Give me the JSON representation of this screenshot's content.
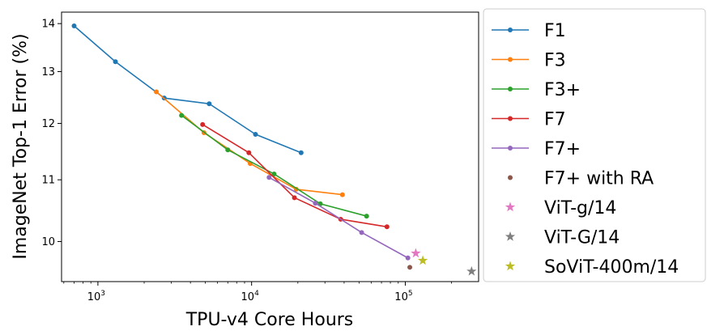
{
  "chart_data": {
    "type": "scatter",
    "xlabel": "TPU-v4 Core Hours",
    "ylabel": "ImageNet Top-1 Error (%)",
    "xscale": "log",
    "yscale": "log",
    "xlim": [
      580,
      300000
    ],
    "ylim": [
      9.4,
      14.25
    ],
    "grid": false,
    "legend_position": "outside-right",
    "x_ticks": [
      {
        "value": 1000,
        "base": "10",
        "exp": "3"
      },
      {
        "value": 10000,
        "base": "10",
        "exp": "4"
      },
      {
        "value": 100000,
        "base": "10",
        "exp": "5"
      }
    ],
    "y_ticks": [
      {
        "value": 10,
        "label": "10"
      },
      {
        "value": 11,
        "label": "11"
      },
      {
        "value": 12,
        "label": "12"
      },
      {
        "value": 13,
        "label": "13"
      },
      {
        "value": 14,
        "label": "14"
      }
    ],
    "series": [
      {
        "name": "F1",
        "color": "#1f77b4",
        "kind": "line",
        "x": [
          700,
          1300,
          2700,
          5300,
          10600,
          21000
        ],
        "y": [
          13.95,
          13.2,
          12.48,
          12.37,
          11.8,
          11.47
        ]
      },
      {
        "name": "F3",
        "color": "#ff7f0e",
        "kind": "line",
        "x": [
          2400,
          4900,
          9800,
          19500,
          39000
        ],
        "y": [
          12.6,
          11.83,
          11.28,
          10.84,
          10.75
        ]
      },
      {
        "name": "F3+",
        "color": "#2ca02c",
        "kind": "line",
        "x": [
          3500,
          7000,
          14000,
          28000,
          56000
        ],
        "y": [
          12.15,
          11.52,
          11.1,
          10.6,
          10.4
        ]
      },
      {
        "name": "F7",
        "color": "#d62728",
        "kind": "line",
        "x": [
          4800,
          9600,
          19000,
          38000,
          76000
        ],
        "y": [
          11.98,
          11.47,
          10.7,
          10.35,
          10.23
        ]
      },
      {
        "name": "F7+",
        "color": "#9467bd",
        "kind": "line",
        "x": [
          13000,
          26000,
          52000,
          104000
        ],
        "y": [
          11.04,
          10.61,
          10.14,
          9.75
        ]
      },
      {
        "name": "F7+ with RA",
        "color": "#8c564b",
        "kind": "dot",
        "x": [
          107000
        ],
        "y": [
          9.61
        ]
      },
      {
        "name": "ViT-g/14",
        "color": "#e377c2",
        "kind": "star",
        "x": [
          117000
        ],
        "y": [
          9.82
        ]
      },
      {
        "name": "ViT-G/14",
        "color": "#7f7f7f",
        "kind": "star",
        "x": [
          270000
        ],
        "y": [
          9.55
        ]
      },
      {
        "name": "SoViT-400m/14",
        "color": "#bcbd22",
        "kind": "star",
        "x": [
          130000
        ],
        "y": [
          9.71
        ]
      }
    ]
  }
}
